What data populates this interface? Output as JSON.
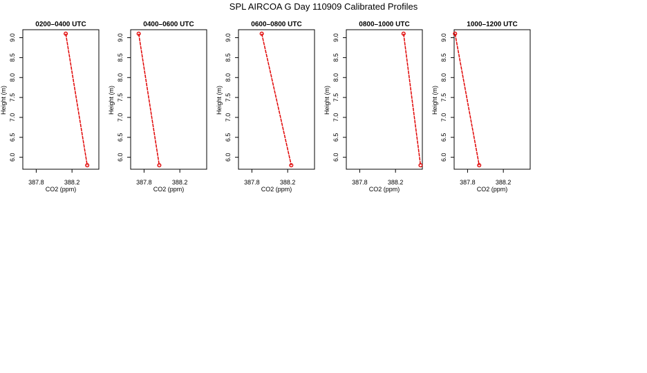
{
  "title": "SPL AIRCOA G  Day 110909  Calibrated Profiles",
  "chart_data": [
    {
      "type": "line",
      "title": "0200–0400 UTC",
      "xlabel": "CO2 (ppm)",
      "ylabel": "Height (m)",
      "xlim": [
        387.65,
        388.5
      ],
      "ylim": [
        5.7,
        9.2
      ],
      "xticks": [
        "387.8",
        "388.2"
      ],
      "yticks": [
        "6.0",
        "6.5",
        "7.0",
        "7.5",
        "8.0",
        "8.5",
        "9.0"
      ],
      "x": [
        388.13,
        388.37
      ],
      "y": [
        9.1,
        5.8
      ],
      "color": "#e00000"
    },
    {
      "type": "line",
      "title": "0400–0600 UTC",
      "xlabel": "CO2 (ppm)",
      "ylabel": "Height (m)",
      "xlim": [
        387.65,
        388.5
      ],
      "ylim": [
        5.7,
        9.2
      ],
      "xticks": [
        "387.8",
        "388.2"
      ],
      "yticks": [
        "6.0",
        "6.5",
        "7.0",
        "7.5",
        "8.0",
        "8.5",
        "9.0"
      ],
      "x": [
        387.74,
        387.97
      ],
      "y": [
        9.1,
        5.8
      ],
      "color": "#e00000"
    },
    {
      "type": "line",
      "title": "0600–0800 UTC",
      "xlabel": "CO2 (ppm)",
      "ylabel": "Height (m)",
      "xlim": [
        387.65,
        388.5
      ],
      "ylim": [
        5.7,
        9.2
      ],
      "xticks": [
        "387.8",
        "388.2"
      ],
      "yticks": [
        "6.0",
        "6.5",
        "7.0",
        "7.5",
        "8.0",
        "8.5",
        "9.0"
      ],
      "x": [
        387.91,
        388.24
      ],
      "y": [
        9.1,
        5.8
      ],
      "color": "#e00000"
    },
    {
      "type": "line",
      "title": "0800–1000 UTC",
      "xlabel": "CO2 (ppm)",
      "ylabel": "Height (m)",
      "xlim": [
        387.65,
        388.5
      ],
      "ylim": [
        5.7,
        9.2
      ],
      "xticks": [
        "387.8",
        "388.2"
      ],
      "yticks": [
        "6.0",
        "6.5",
        "7.0",
        "7.5",
        "8.0",
        "8.5",
        "9.0"
      ],
      "x": [
        388.29,
        388.48
      ],
      "y": [
        9.1,
        5.8
      ],
      "color": "#e00000"
    },
    {
      "type": "line",
      "title": "1000–1200 UTC",
      "xlabel": "CO2 (ppm)",
      "ylabel": "Height (m)",
      "xlim": [
        387.65,
        388.5
      ],
      "ylim": [
        5.7,
        9.2
      ],
      "xticks": [
        "387.8",
        "388.2"
      ],
      "yticks": [
        "6.0",
        "6.5",
        "7.0",
        "7.5",
        "8.0",
        "8.5",
        "9.0"
      ],
      "x": [
        387.66,
        387.93
      ],
      "y": [
        9.1,
        5.8
      ],
      "color": "#e00000"
    }
  ]
}
